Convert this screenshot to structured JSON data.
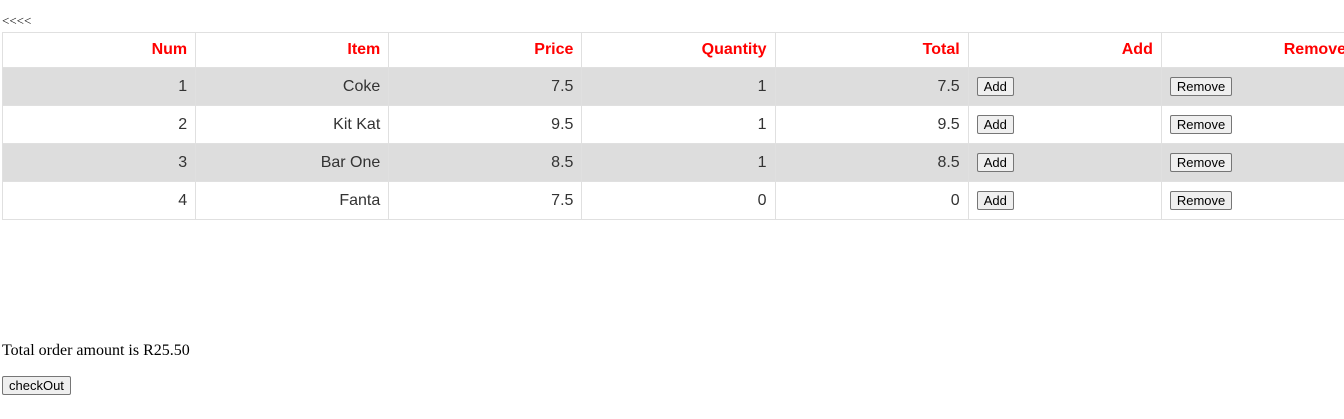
{
  "nav": {
    "back_label": "<<<<"
  },
  "table": {
    "headers": [
      "Num",
      "Item",
      "Price",
      "Quantity",
      "Total",
      "Add",
      "Remove"
    ],
    "rows": [
      {
        "num": "1",
        "item": "Coke",
        "price": "7.5",
        "quantity": "1",
        "total": "7.5",
        "add_label": "Add",
        "remove_label": "Remove"
      },
      {
        "num": "2",
        "item": "Kit Kat",
        "price": "9.5",
        "quantity": "1",
        "total": "9.5",
        "add_label": "Add",
        "remove_label": "Remove"
      },
      {
        "num": "3",
        "item": "Bar One",
        "price": "8.5",
        "quantity": "1",
        "total": "8.5",
        "add_label": "Add",
        "remove_label": "Remove"
      },
      {
        "num": "4",
        "item": "Fanta",
        "price": "7.5",
        "quantity": "0",
        "total": "0",
        "add_label": "Add",
        "remove_label": "Remove"
      }
    ]
  },
  "summary": {
    "total_text": "Total order amount is R25.50"
  },
  "checkout": {
    "label": "checkOut"
  },
  "colors": {
    "header_text": "#ff0000",
    "stripe": "#dddddd",
    "border": "#e0e0e0"
  }
}
